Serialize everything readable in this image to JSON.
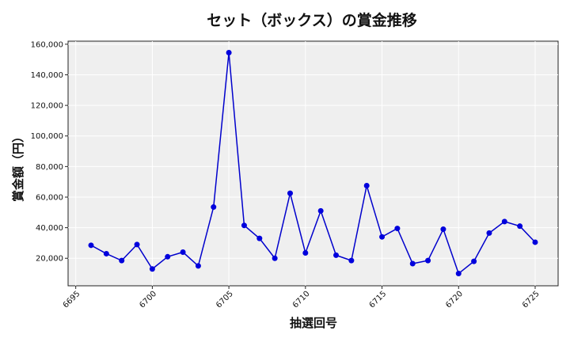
{
  "chart_data": {
    "type": "line",
    "title": "セット（ボックス）の賞金推移",
    "xlabel": "抽選回号",
    "ylabel": "賞金額（円）",
    "xlim": [
      6694.5,
      6726.5
    ],
    "ylim": [
      2000,
      162000
    ],
    "x_ticks": [
      6695,
      6700,
      6705,
      6710,
      6715,
      6720,
      6725
    ],
    "y_ticks": [
      20000,
      40000,
      60000,
      80000,
      100000,
      120000,
      140000,
      160000
    ],
    "x_tick_labels": [
      "6695",
      "6700",
      "6705",
      "6710",
      "6715",
      "6720",
      "6725"
    ],
    "y_tick_labels": [
      "20,000",
      "40,000",
      "60,000",
      "80,000",
      "100,000",
      "120,000",
      "140,000",
      "160,000"
    ],
    "grid": true,
    "colors": {
      "line": "#0000cc",
      "marker": "#0000dd",
      "plot_bg": "#efefef",
      "grid": "#ffffff"
    },
    "series": [
      {
        "x": [
          6696,
          6697,
          6698,
          6699,
          6700,
          6701,
          6702,
          6703,
          6704,
          6705,
          6706,
          6707,
          6708,
          6709,
          6710,
          6711,
          6712,
          6713,
          6714,
          6715,
          6716,
          6717,
          6718,
          6719,
          6720,
          6721,
          6722,
          6723,
          6724,
          6725
        ],
        "values": [
          28500,
          23000,
          18500,
          29000,
          13000,
          21000,
          24000,
          15000,
          53500,
          154500,
          41500,
          33000,
          20000,
          62500,
          23500,
          51000,
          22000,
          18500,
          67500,
          34000,
          39500,
          16500,
          18500,
          39000,
          10000,
          18000,
          36500,
          44000,
          41000,
          30500
        ]
      }
    ]
  }
}
